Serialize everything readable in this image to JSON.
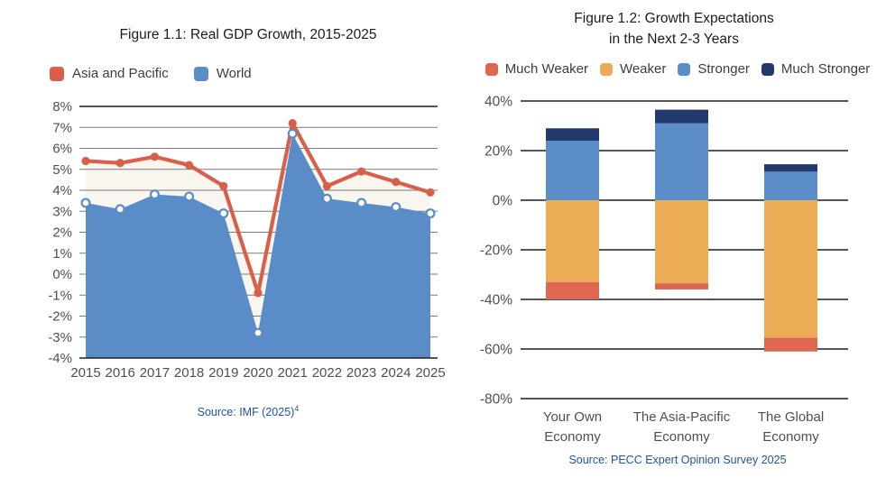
{
  "chart_data": [
    {
      "id": "fig1",
      "type": "area",
      "title": "Figure 1.1: Real GDP Growth, 2015-2025",
      "x": [
        "2015",
        "2016",
        "2017",
        "2018",
        "2019",
        "2020",
        "2021",
        "2022",
        "2023",
        "2024",
        "2025"
      ],
      "series": [
        {
          "name": "Asia and Pacific",
          "style": "line-with-cream-fill",
          "color": "#d8604a",
          "fill": "#f9f5ef",
          "marker": "filled-dot",
          "values": [
            5.4,
            5.3,
            5.6,
            5.2,
            4.2,
            -0.9,
            7.2,
            4.2,
            4.9,
            4.4,
            3.9
          ]
        },
        {
          "name": "World",
          "style": "filled-area",
          "color": "#5a8cc8",
          "fill": "#5a8cc8",
          "marker": "open-circle",
          "values": [
            3.4,
            3.1,
            3.8,
            3.7,
            2.9,
            -2.8,
            6.7,
            3.6,
            3.4,
            3.2,
            2.9
          ]
        }
      ],
      "ylim": [
        -4,
        8
      ],
      "yticks": [
        "8%",
        "7%",
        "6%",
        "5%",
        "4%",
        "3%",
        "2%",
        "1%",
        "0%",
        "-1%",
        "-2%",
        "-3%",
        "-4%"
      ],
      "grid": "horizontal-gray",
      "legend_position": "top-left",
      "source": "Source: IMF (2025)",
      "source_sup": "4"
    },
    {
      "id": "fig2",
      "type": "bar",
      "stacked": true,
      "title_lines": [
        "Figure 1.2: Growth Expectations",
        "in the Next 2-3 Years"
      ],
      "categories": [
        [
          "Your Own",
          "Economy"
        ],
        [
          "The Asia-Pacific",
          "Economy"
        ],
        [
          "The Global",
          "Economy"
        ]
      ],
      "series": [
        {
          "name": "Much Weaker",
          "color": "#dd6750",
          "values": [
            -7,
            -2.5,
            -5.5
          ]
        },
        {
          "name": "Weaker",
          "color": "#ecab55",
          "values": [
            -33,
            -33.5,
            -55.5
          ]
        },
        {
          "name": "Stronger",
          "color": "#5b8dc8",
          "values": [
            24,
            31,
            11.5
          ]
        },
        {
          "name": "Much Stronger",
          "color": "#24396b",
          "values": [
            5,
            5.5,
            3
          ]
        }
      ],
      "ylim": [
        -80,
        40
      ],
      "yticks": [
        "40%",
        "20%",
        "0%",
        "-20%",
        "-40%",
        "-60%",
        "-80%"
      ],
      "grid": "horizontal-dark",
      "legend_position": "top-center",
      "source": "Source: PECC Expert Opinion Survey 2025"
    }
  ],
  "colors": {
    "grid_gray": "#7d7a78",
    "grid_dark": "#1e1e1e",
    "axis_label": "#4f4f4f",
    "title_text": "#1c1c1c",
    "source_blue": "#2152a3"
  }
}
